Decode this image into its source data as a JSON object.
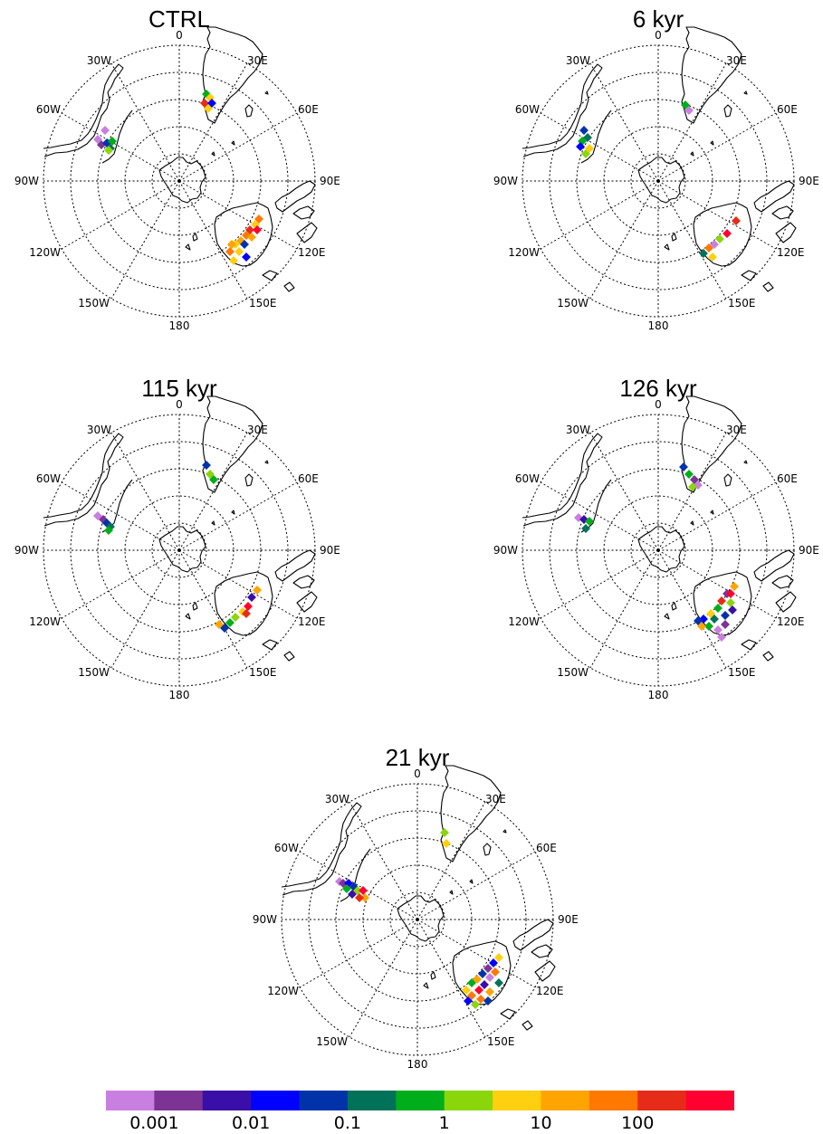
{
  "panels": [
    {
      "id": "ctrl",
      "title": "CTRL"
    },
    {
      "id": "kyr6",
      "title": "6 kyr"
    },
    {
      "id": "kyr115",
      "title": "115 kyr"
    },
    {
      "id": "kyr126",
      "title": "126 kyr"
    },
    {
      "id": "kyr21",
      "title": "21 kyr"
    }
  ],
  "longitude_labels": [
    "0",
    "30E",
    "60E",
    "90E",
    "120E",
    "150E",
    "180",
    "150W",
    "120W",
    "90W",
    "60W",
    "30W"
  ],
  "colorbar": {
    "colors": [
      "#c97fdf",
      "#7d3394",
      "#3a0ea8",
      "#0000ff",
      "#0033aa",
      "#00725a",
      "#00ad1a",
      "#8ad60a",
      "#ffcf10",
      "#ffa400",
      "#ff7800",
      "#e62c18",
      "#ff0030"
    ],
    "labels": [
      "0.001",
      "0.01",
      "0.1",
      "1",
      "10",
      "100"
    ]
  },
  "colors": {
    "land_outline": "#000000",
    "grid": "#000000"
  }
}
